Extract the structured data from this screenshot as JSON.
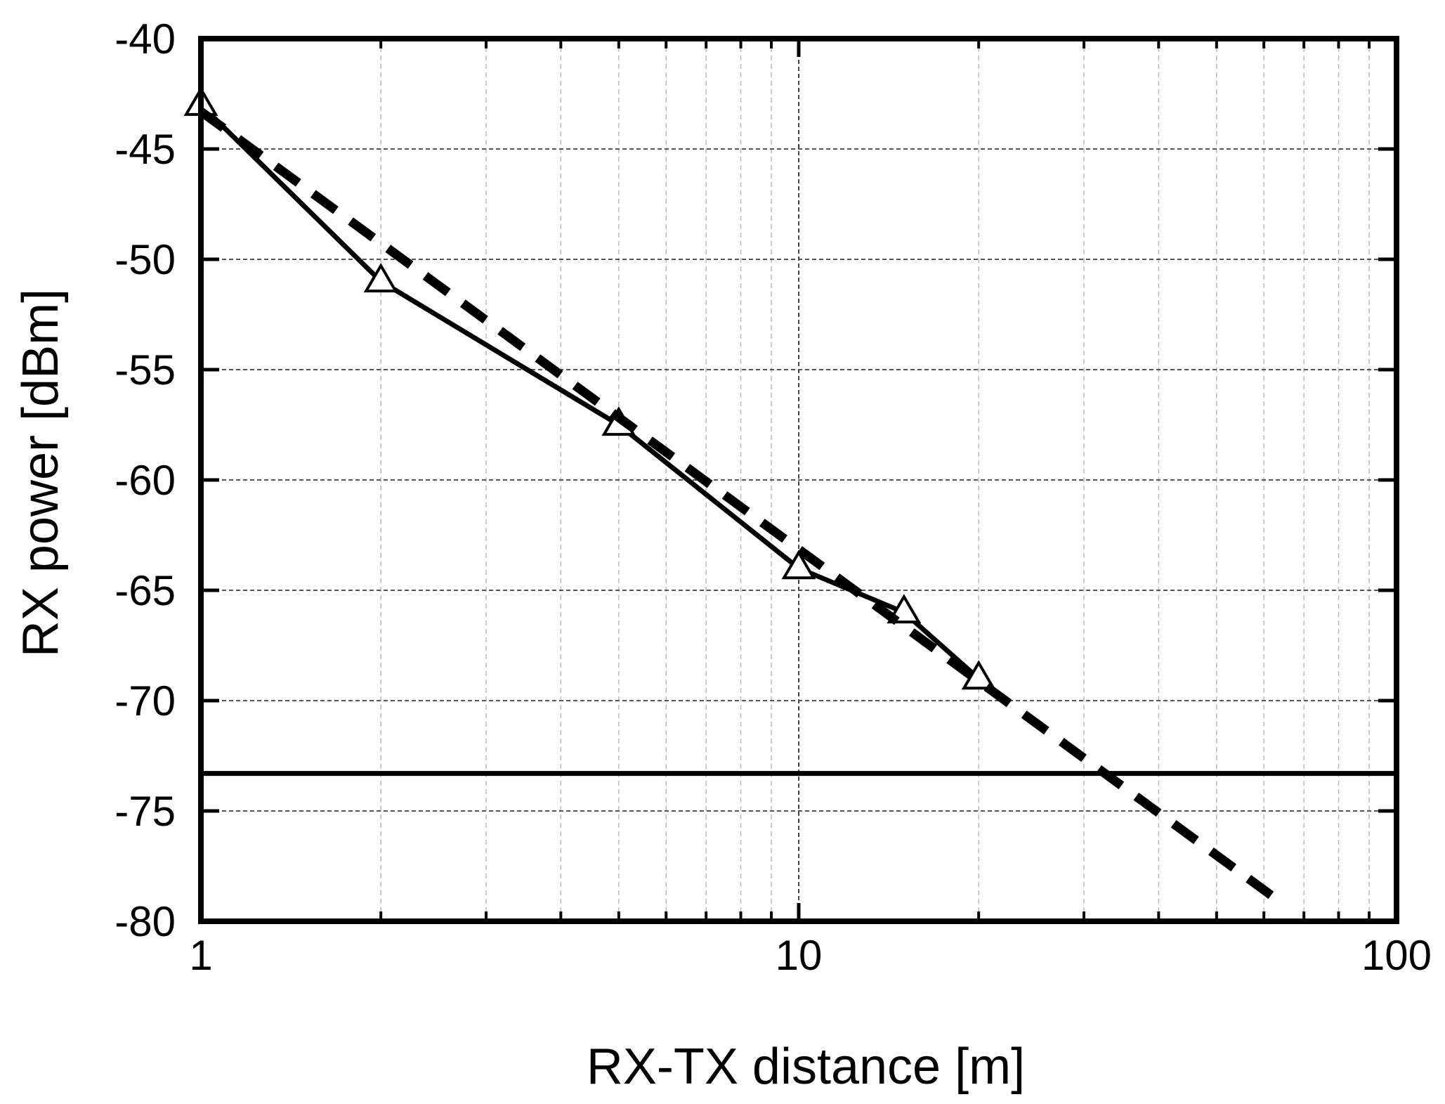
{
  "chart_data": {
    "type": "line",
    "xlabel": "RX-TX distance [m]",
    "ylabel": "RX power [dBm]",
    "xscale": "log",
    "xlim": [
      1,
      100
    ],
    "ylim": [
      -80,
      -40
    ],
    "grid": true,
    "x_tick_labels": [
      "1",
      "10",
      "100"
    ],
    "y_tick_labels": [
      "-40",
      "-45",
      "-50",
      "-55",
      "-60",
      "-65",
      "-70",
      "-75",
      "-80"
    ],
    "series": [
      {
        "style": "solid-with-triangle-markers",
        "x": [
          1,
          2,
          5,
          10,
          15,
          20
        ],
        "y": [
          -43,
          -51,
          -57.5,
          -64,
          -66,
          -69
        ]
      },
      {
        "style": "dashed",
        "x": [
          1,
          63
        ],
        "y": [
          -43.3,
          -79
        ]
      },
      {
        "style": "solid-horizontal",
        "x": [
          1,
          100
        ],
        "y": [
          -73.3,
          -73.3
        ]
      }
    ]
  }
}
